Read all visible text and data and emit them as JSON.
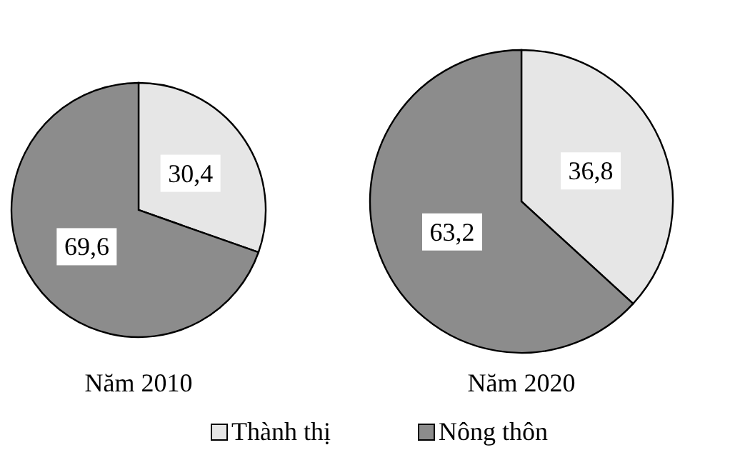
{
  "chart_data": [
    {
      "type": "pie",
      "title": "Năm 2010",
      "categories": [
        "Thành thị",
        "Nông thôn"
      ],
      "values": [
        30.4,
        69.6
      ],
      "value_labels": [
        "30,4",
        "69,6"
      ],
      "colors": [
        "#e6e6e6",
        "#8c8c8c"
      ],
      "legend": "bottom"
    },
    {
      "type": "pie",
      "title": "Năm 2020",
      "categories": [
        null,
        null
      ],
      "values": [
        36.8,
        63.2
      ],
      "value_labels": [
        "36,8",
        "63,2"
      ],
      "colors": [
        "#e6e6e6",
        "#8c8c8c"
      ]
    }
  ]
}
